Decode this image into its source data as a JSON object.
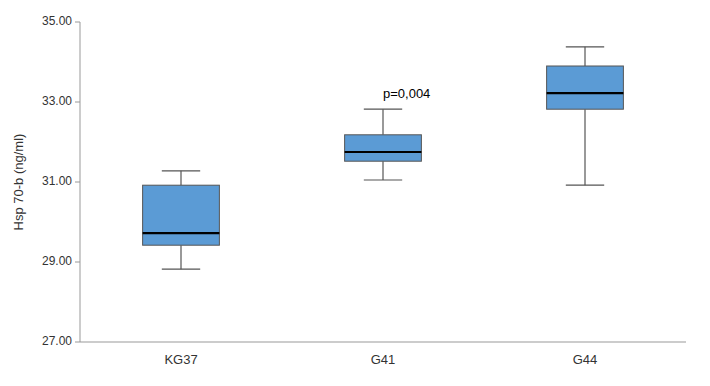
{
  "chart_data": {
    "type": "box",
    "categories": [
      "KG37",
      "G41",
      "G44"
    ],
    "boxes": [
      {
        "low": 28.82,
        "q1": 29.42,
        "median": 29.72,
        "q3": 30.92,
        "high": 31.28
      },
      {
        "low": 31.05,
        "q1": 31.52,
        "median": 31.75,
        "q3": 32.18,
        "high": 32.82
      },
      {
        "low": 30.92,
        "q1": 32.82,
        "median": 33.22,
        "q3": 33.9,
        "high": 34.38
      }
    ],
    "color": "#5B9BD5",
    "ylabel": "Hsp 70-b (ng/ml)",
    "ylim": [
      27.0,
      35.0
    ],
    "yticks": [
      {
        "value": 27.0,
        "label": "27.00"
      },
      {
        "value": 29.0,
        "label": "29.00"
      },
      {
        "value": 31.0,
        "label": "31.00"
      },
      {
        "value": 33.0,
        "label": "33.00"
      },
      {
        "value": 35.0,
        "label": "35.00"
      }
    ],
    "annotations": [
      {
        "text": "p=0,004",
        "x": "G41",
        "y": 33.05
      }
    ],
    "grid": false
  }
}
